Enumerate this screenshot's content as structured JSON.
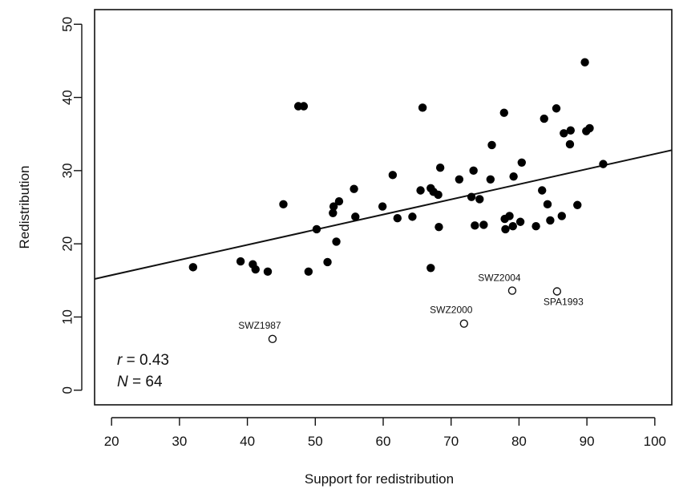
{
  "chart_data": {
    "type": "scatter",
    "title": "",
    "xlabel": "Support for redistribution",
    "ylabel": "Redistribution",
    "xlim": [
      17.5,
      102.5
    ],
    "ylim": [
      -2,
      52
    ],
    "x_ticks": [
      20,
      30,
      40,
      50,
      60,
      70,
      80,
      90,
      100
    ],
    "y_ticks": [
      0,
      10,
      20,
      30,
      40,
      50
    ],
    "grid": false,
    "filled_points": [
      {
        "x": 32.0,
        "y": 16.8
      },
      {
        "x": 39.0,
        "y": 17.6
      },
      {
        "x": 40.8,
        "y": 17.2
      },
      {
        "x": 41.2,
        "y": 16.5
      },
      {
        "x": 43.0,
        "y": 16.2
      },
      {
        "x": 45.3,
        "y": 25.4
      },
      {
        "x": 47.5,
        "y": 38.8
      },
      {
        "x": 48.3,
        "y": 38.8
      },
      {
        "x": 49.0,
        "y": 16.2
      },
      {
        "x": 50.2,
        "y": 22.0
      },
      {
        "x": 51.8,
        "y": 17.5
      },
      {
        "x": 52.6,
        "y": 24.2
      },
      {
        "x": 52.7,
        "y": 25.1
      },
      {
        "x": 53.1,
        "y": 20.3
      },
      {
        "x": 53.5,
        "y": 25.8
      },
      {
        "x": 55.7,
        "y": 27.5
      },
      {
        "x": 55.9,
        "y": 23.7
      },
      {
        "x": 59.9,
        "y": 25.1
      },
      {
        "x": 61.4,
        "y": 29.4
      },
      {
        "x": 62.1,
        "y": 23.5
      },
      {
        "x": 64.3,
        "y": 23.7
      },
      {
        "x": 65.5,
        "y": 27.3
      },
      {
        "x": 65.8,
        "y": 38.6
      },
      {
        "x": 67.0,
        "y": 27.6
      },
      {
        "x": 67.4,
        "y": 27.1
      },
      {
        "x": 67.0,
        "y": 16.7
      },
      {
        "x": 68.1,
        "y": 26.7
      },
      {
        "x": 68.2,
        "y": 22.3
      },
      {
        "x": 68.4,
        "y": 30.4
      },
      {
        "x": 71.2,
        "y": 28.8
      },
      {
        "x": 73.0,
        "y": 26.4
      },
      {
        "x": 73.3,
        "y": 30.0
      },
      {
        "x": 73.5,
        "y": 22.5
      },
      {
        "x": 74.2,
        "y": 26.1
      },
      {
        "x": 74.8,
        "y": 22.6
      },
      {
        "x": 75.8,
        "y": 28.8
      },
      {
        "x": 76.0,
        "y": 33.5
      },
      {
        "x": 77.8,
        "y": 37.9
      },
      {
        "x": 77.9,
        "y": 23.4
      },
      {
        "x": 78.0,
        "y": 22.0
      },
      {
        "x": 78.6,
        "y": 23.8
      },
      {
        "x": 79.1,
        "y": 22.4
      },
      {
        "x": 79.2,
        "y": 29.2
      },
      {
        "x": 80.4,
        "y": 31.1
      },
      {
        "x": 80.2,
        "y": 23.0
      },
      {
        "x": 82.5,
        "y": 22.4
      },
      {
        "x": 83.4,
        "y": 27.3
      },
      {
        "x": 83.7,
        "y": 37.1
      },
      {
        "x": 84.2,
        "y": 25.4
      },
      {
        "x": 84.6,
        "y": 23.2
      },
      {
        "x": 85.5,
        "y": 38.5
      },
      {
        "x": 86.3,
        "y": 23.8
      },
      {
        "x": 86.6,
        "y": 35.1
      },
      {
        "x": 87.5,
        "y": 33.6
      },
      {
        "x": 87.6,
        "y": 35.5
      },
      {
        "x": 88.6,
        "y": 25.3
      },
      {
        "x": 89.7,
        "y": 44.8
      },
      {
        "x": 89.9,
        "y": 35.4
      },
      {
        "x": 90.4,
        "y": 35.8
      },
      {
        "x": 92.4,
        "y": 30.9
      }
    ],
    "open_points": [
      {
        "x": 43.7,
        "y": 7.0,
        "label": "SWZ1987"
      },
      {
        "x": 71.9,
        "y": 9.1,
        "label": "SWZ2000"
      },
      {
        "x": 79.0,
        "y": 13.6,
        "label": "SWZ2004"
      },
      {
        "x": 85.6,
        "y": 13.5,
        "label": "SPA1993"
      }
    ],
    "fit_line": {
      "x1": 17.5,
      "y1": 15.2,
      "x2": 102.5,
      "y2": 32.8
    },
    "annotations": [
      {
        "italic": "r",
        "text": " = 0.43"
      },
      {
        "italic": "N",
        "text": " = 64"
      }
    ]
  }
}
